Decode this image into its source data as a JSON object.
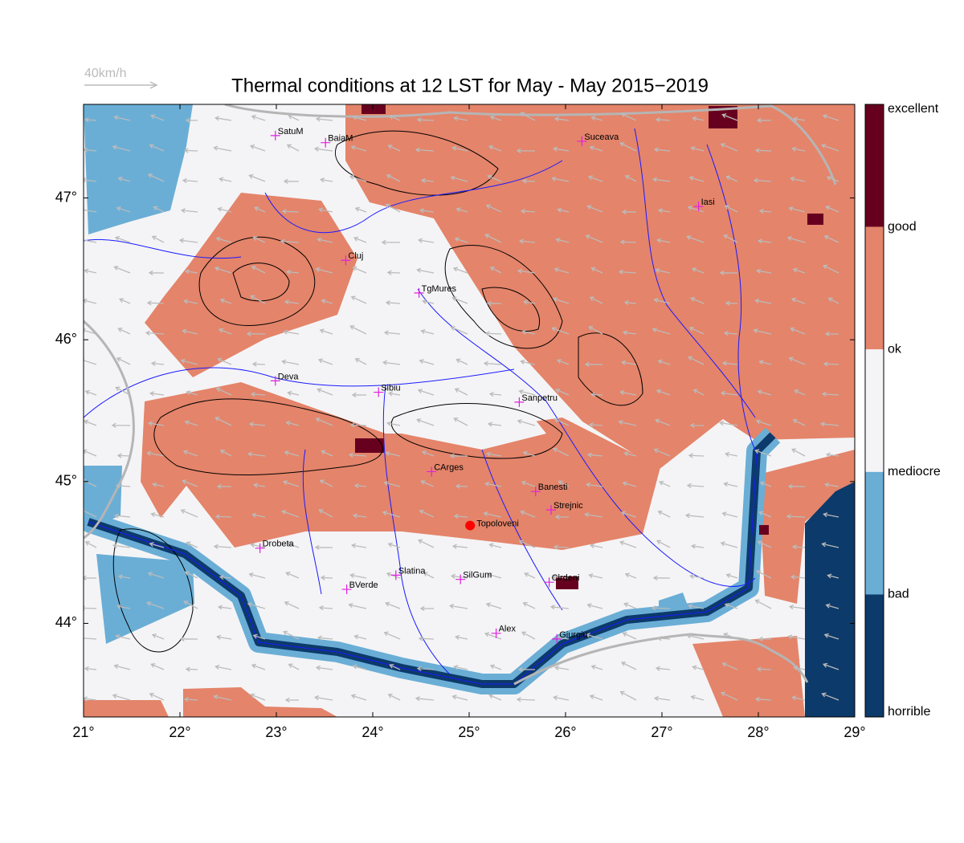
{
  "title": "Thermal conditions at 12 LST for May - May  2015−2019",
  "wind_scale": "40km/h",
  "map": {
    "xlim": [
      21,
      29
    ],
    "ylim": [
      43.34,
      47.66
    ],
    "xticks": [
      {
        "value": 21,
        "label": "21°"
      },
      {
        "value": 22,
        "label": "22°"
      },
      {
        "value": 23,
        "label": "23°"
      },
      {
        "value": 24,
        "label": "24°"
      },
      {
        "value": 25,
        "label": "25°"
      },
      {
        "value": 26,
        "label": "26°"
      },
      {
        "value": 27,
        "label": "27°"
      },
      {
        "value": 28,
        "label": "28°"
      },
      {
        "value": 29,
        "label": "29°"
      }
    ],
    "yticks": [
      {
        "value": 44,
        "label": "44°"
      },
      {
        "value": 45,
        "label": "45°"
      },
      {
        "value": 46,
        "label": "46°"
      },
      {
        "value": 47,
        "label": "47°"
      }
    ],
    "cities": [
      {
        "name": "SatuM",
        "lon": 22.99,
        "lat": 47.44
      },
      {
        "name": "BaiaM",
        "lon": 23.51,
        "lat": 47.39
      },
      {
        "name": "Suceava",
        "lon": 26.17,
        "lat": 47.4
      },
      {
        "name": "Iasi",
        "lon": 27.38,
        "lat": 46.94
      },
      {
        "name": "Cluj",
        "lon": 23.72,
        "lat": 46.56
      },
      {
        "name": "TgMures",
        "lon": 24.48,
        "lat": 46.33
      },
      {
        "name": "Deva",
        "lon": 22.99,
        "lat": 45.71
      },
      {
        "name": "Sibiu",
        "lon": 24.06,
        "lat": 45.63
      },
      {
        "name": "Sanpetru",
        "lon": 25.52,
        "lat": 45.56
      },
      {
        "name": "CArges",
        "lon": 24.61,
        "lat": 45.07
      },
      {
        "name": "Banesti",
        "lon": 25.69,
        "lat": 44.93
      },
      {
        "name": "Strejnic",
        "lon": 25.85,
        "lat": 44.8
      },
      {
        "name": "Drobeta",
        "lon": 22.83,
        "lat": 44.53
      },
      {
        "name": "Slatina",
        "lon": 24.24,
        "lat": 44.34
      },
      {
        "name": "SilGum",
        "lon": 24.91,
        "lat": 44.31
      },
      {
        "name": "Clrdeni",
        "lon": 25.83,
        "lat": 44.29
      },
      {
        "name": "BVerde",
        "lon": 23.73,
        "lat": 44.24
      },
      {
        "name": "Alex",
        "lon": 25.28,
        "lat": 43.93
      },
      {
        "name": "Giurgiu",
        "lon": 25.91,
        "lat": 43.89
      }
    ],
    "site": {
      "name": "Topoloveni",
      "lon": 25.01,
      "lat": 44.69
    }
  },
  "colorbar": {
    "labels": [
      "excellent",
      "good",
      "ok",
      "mediocre",
      "bad",
      "horrible"
    ],
    "colors": [
      "#67001f",
      "#e4846a",
      "#f4f4f6",
      "#6aaed6",
      "#0c3a6a"
    ]
  }
}
